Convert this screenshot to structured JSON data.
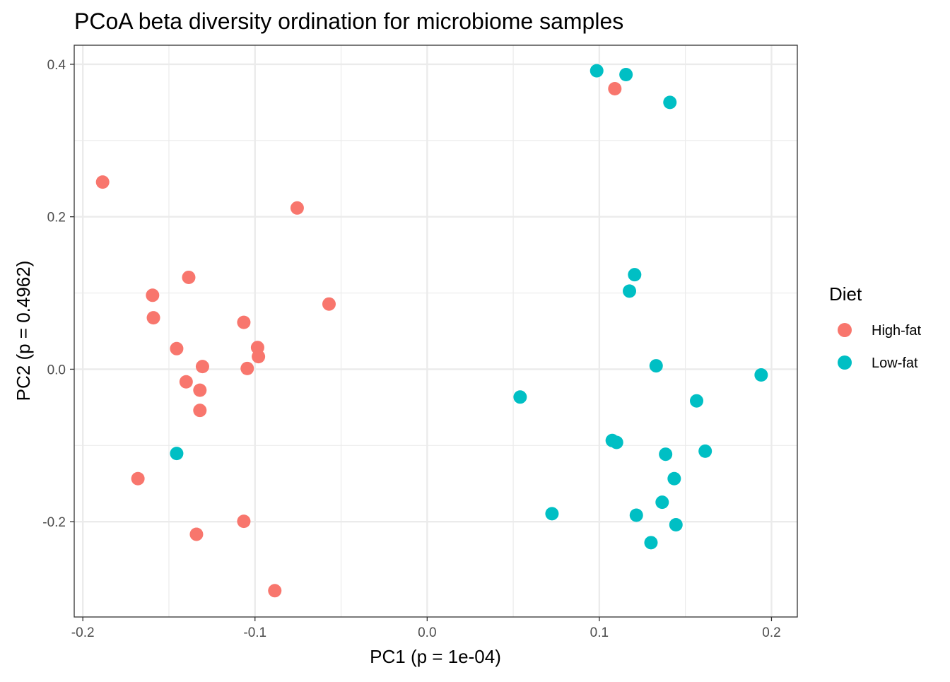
{
  "chart_data": {
    "type": "scatter",
    "title": "PCoA beta diversity ordination for microbiome samples",
    "xlabel": "PC1 (p = 1e-04)",
    "ylabel": "PC2 (p = 0.4962)",
    "xlim": [
      -0.205,
      0.215
    ],
    "ylim": [
      -0.325,
      0.425
    ],
    "x_ticks": [
      {
        "value": -0.2,
        "label": "-0.2"
      },
      {
        "value": -0.1,
        "label": "-0.1"
      },
      {
        "value": 0.0,
        "label": "0.0"
      },
      {
        "value": 0.1,
        "label": "0.1"
      },
      {
        "value": 0.2,
        "label": "0.2"
      }
    ],
    "y_ticks": [
      {
        "value": -0.2,
        "label": "-0.2"
      },
      {
        "value": 0.0,
        "label": "0.0"
      },
      {
        "value": 0.2,
        "label": "0.2"
      },
      {
        "value": 0.4,
        "label": "0.4"
      }
    ],
    "grid": true,
    "legend": {
      "title": "Diet",
      "position": "right"
    },
    "series": [
      {
        "name": "High-fat",
        "color": "#F8766D",
        "points": [
          {
            "x": -0.1885,
            "y": 0.2455
          },
          {
            "x": -0.0755,
            "y": 0.2115
          },
          {
            "x": -0.1385,
            "y": 0.1205
          },
          {
            "x": -0.1595,
            "y": 0.097
          },
          {
            "x": -0.159,
            "y": 0.0675
          },
          {
            "x": -0.057,
            "y": 0.0855
          },
          {
            "x": -0.1065,
            "y": 0.0615
          },
          {
            "x": -0.1455,
            "y": 0.027
          },
          {
            "x": -0.0985,
            "y": 0.0285
          },
          {
            "x": -0.098,
            "y": 0.0165
          },
          {
            "x": -0.1305,
            "y": 0.0035
          },
          {
            "x": -0.1045,
            "y": 0.001
          },
          {
            "x": -0.14,
            "y": -0.0165
          },
          {
            "x": -0.132,
            "y": -0.0275
          },
          {
            "x": -0.132,
            "y": -0.054
          },
          {
            "x": -0.168,
            "y": -0.1435
          },
          {
            "x": -0.1065,
            "y": -0.1995
          },
          {
            "x": -0.134,
            "y": -0.2165
          },
          {
            "x": -0.0885,
            "y": -0.2905
          },
          {
            "x": 0.109,
            "y": 0.368
          }
        ]
      },
      {
        "name": "Low-fat",
        "color": "#00BFC4",
        "points": [
          {
            "x": 0.0985,
            "y": 0.3915
          },
          {
            "x": 0.1155,
            "y": 0.3865
          },
          {
            "x": 0.141,
            "y": 0.35
          },
          {
            "x": 0.1205,
            "y": 0.124
          },
          {
            "x": 0.1175,
            "y": 0.1025
          },
          {
            "x": 0.133,
            "y": 0.0045
          },
          {
            "x": 0.194,
            "y": -0.0075
          },
          {
            "x": 0.054,
            "y": -0.0365
          },
          {
            "x": 0.1565,
            "y": -0.0415
          },
          {
            "x": 0.1075,
            "y": -0.0935
          },
          {
            "x": 0.11,
            "y": -0.096
          },
          {
            "x": 0.1615,
            "y": -0.1075
          },
          {
            "x": 0.1385,
            "y": -0.1115
          },
          {
            "x": 0.1435,
            "y": -0.1435
          },
          {
            "x": 0.1365,
            "y": -0.1745
          },
          {
            "x": 0.0725,
            "y": -0.1895
          },
          {
            "x": 0.1215,
            "y": -0.1915
          },
          {
            "x": 0.1445,
            "y": -0.204
          },
          {
            "x": 0.13,
            "y": -0.2275
          },
          {
            "x": -0.1455,
            "y": -0.1105
          }
        ]
      }
    ]
  }
}
